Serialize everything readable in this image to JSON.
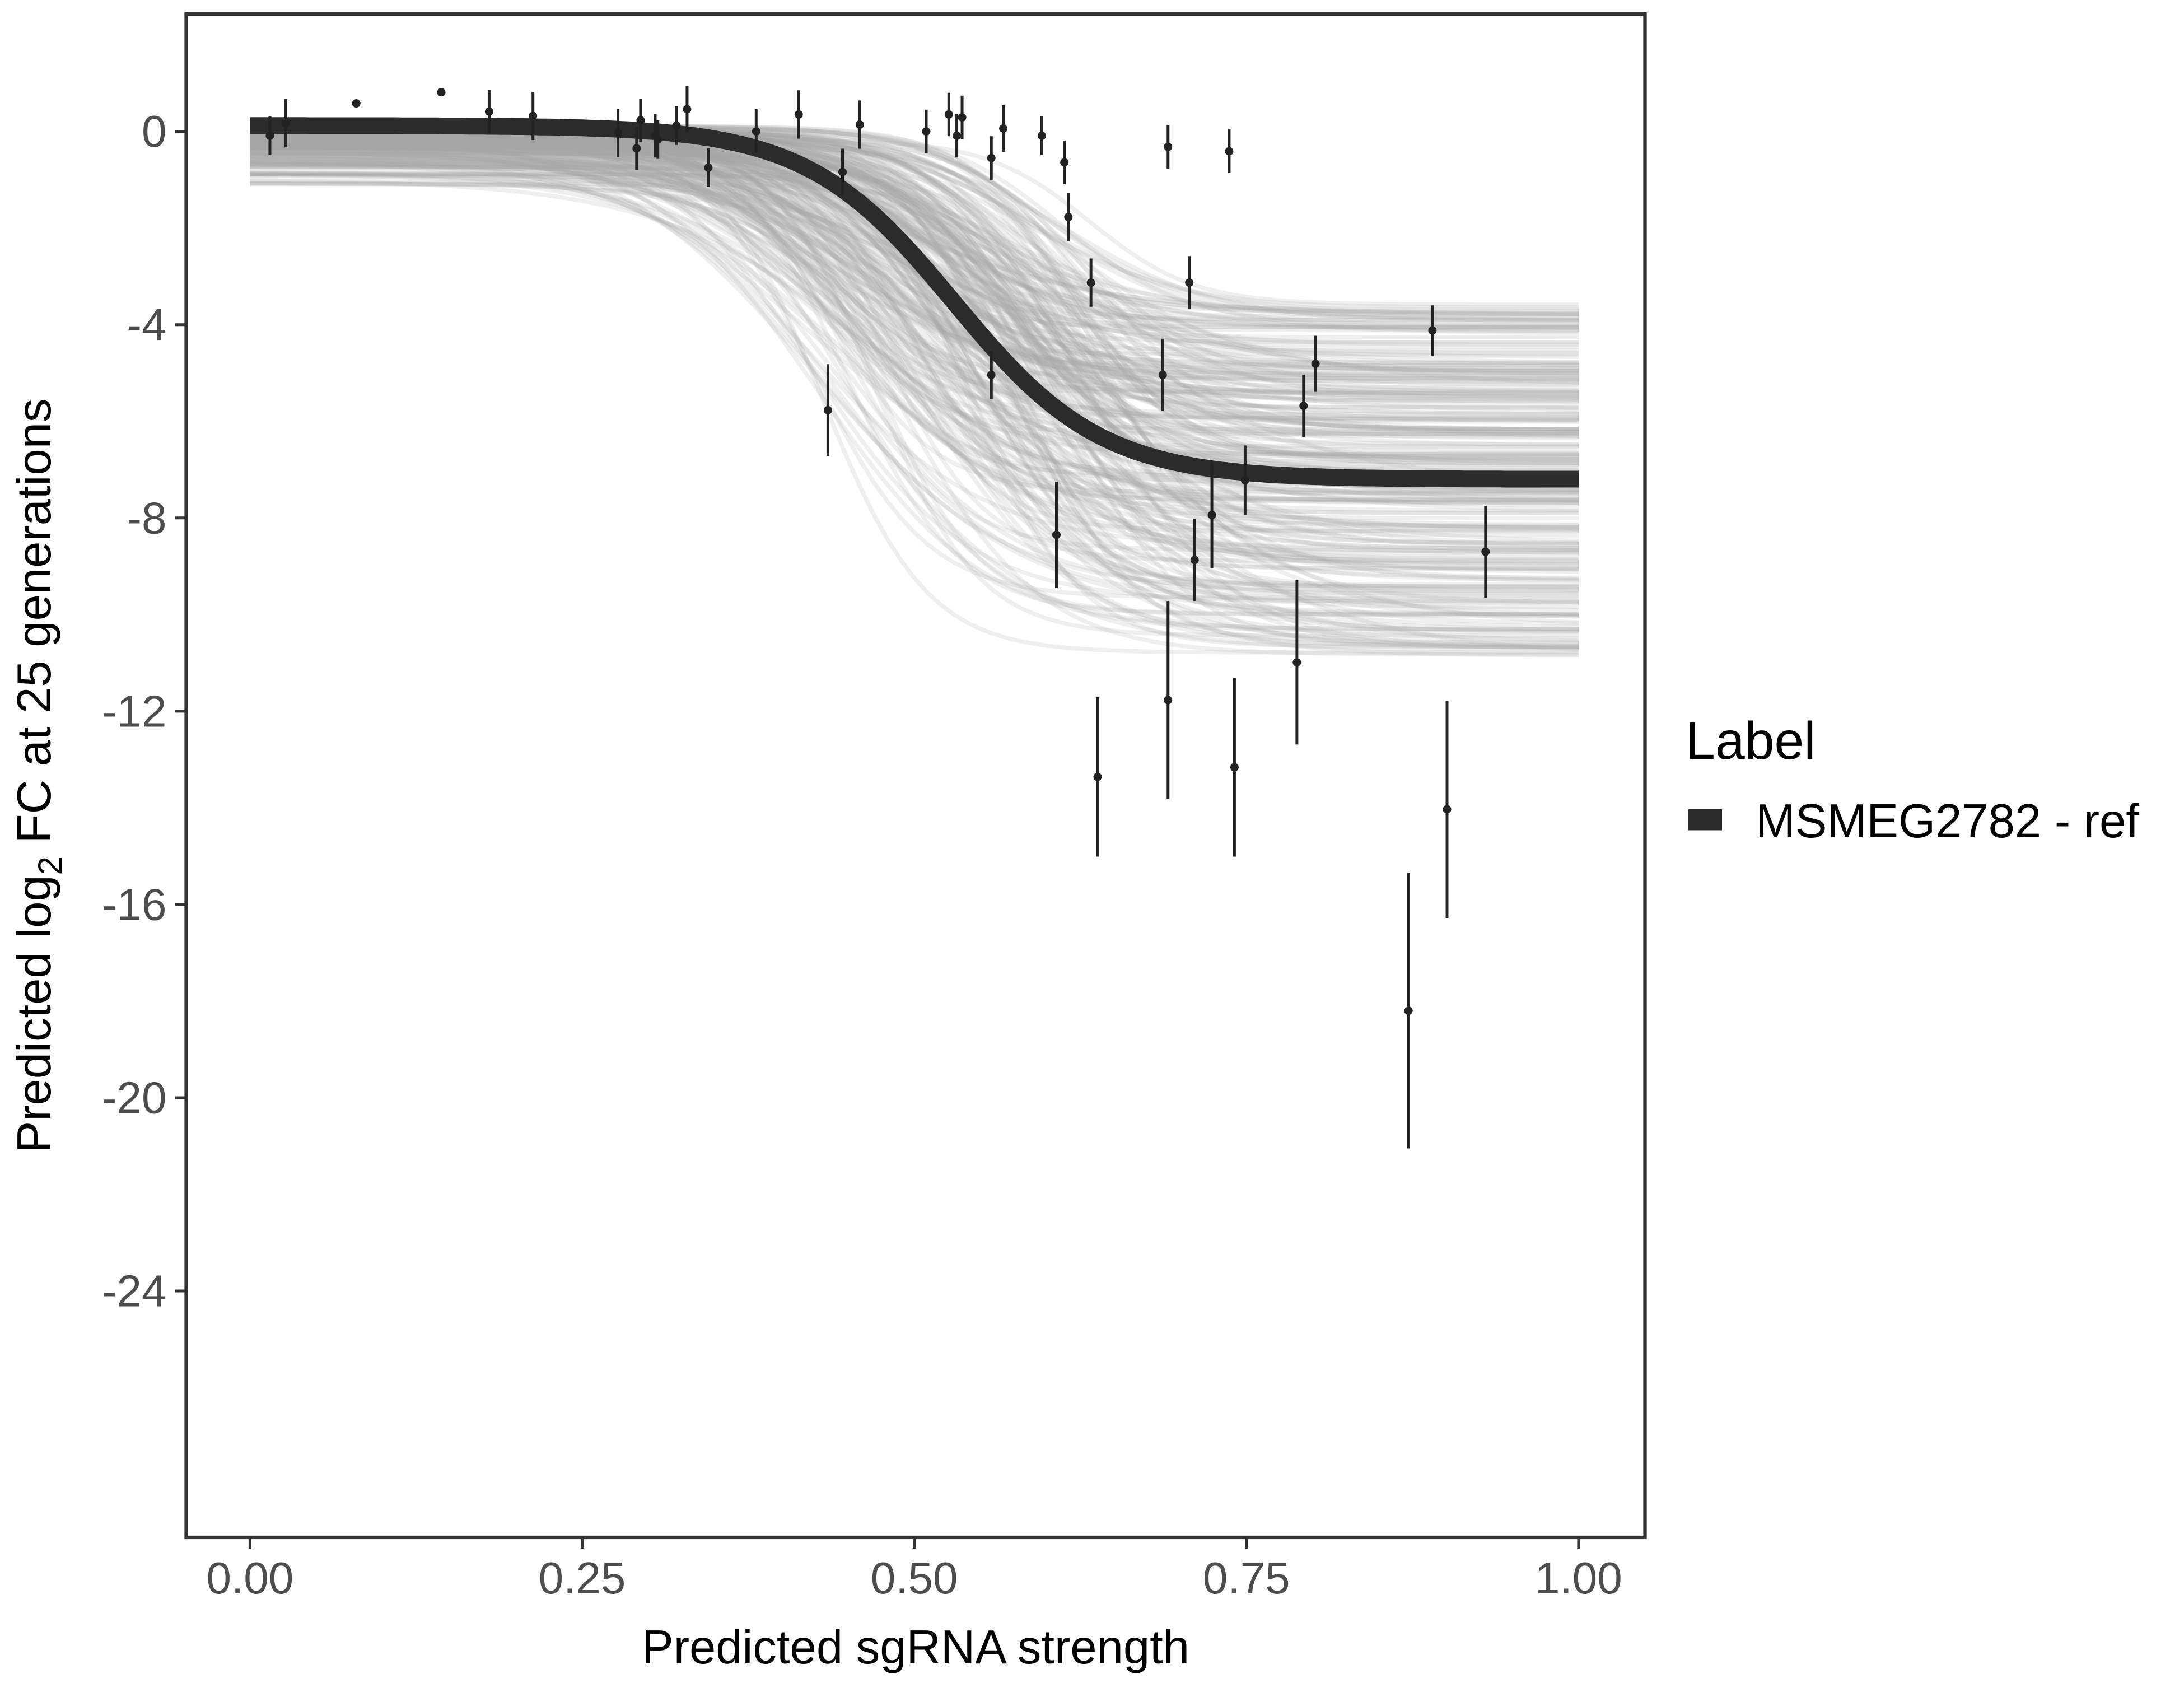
{
  "chart_data": {
    "type": "scatter",
    "title": "",
    "xlabel": "Predicted sgRNA strength",
    "ylabel_prefix": "Predicted  log",
    "ylabel_sub": "2",
    "ylabel_suffix": " FC at 25 generations",
    "xlim": [
      -0.048,
      1.05
    ],
    "ylim": [
      -29.1,
      2.43
    ],
    "x_ticks": [
      0,
      0.25,
      0.5,
      0.75,
      1.0
    ],
    "x_tick_labels": [
      "0.00",
      "0.25",
      "0.50",
      "0.75",
      "1.00"
    ],
    "y_ticks": [
      0,
      -4,
      -8,
      -12,
      -16,
      -20,
      -24
    ],
    "y_tick_labels": [
      "0",
      "-4",
      "-8",
      "-12",
      "-16",
      "-20",
      "-24"
    ],
    "grid": false,
    "legend": {
      "title": "Label",
      "placement": "right",
      "entries": [
        {
          "name": "MSMEG2782 - ref",
          "color": "#2b2b2b"
        }
      ]
    },
    "fit_curve": {
      "top": 0.12,
      "bottom": -7.2,
      "midpoint": 0.53,
      "slope": 18,
      "color": "#2b2b2b"
    },
    "posterior_band_color": "#a6a6a6",
    "points": [
      {
        "x": 0.015,
        "y": -0.09,
        "err": 0.4
      },
      {
        "x": 0.027,
        "y": 0.17,
        "err": 0.5
      },
      {
        "x": 0.08,
        "y": 0.58,
        "err": 0
      },
      {
        "x": 0.144,
        "y": 0.81,
        "err": 0
      },
      {
        "x": 0.18,
        "y": 0.41,
        "err": 0.45
      },
      {
        "x": 0.213,
        "y": 0.32,
        "err": 0.5
      },
      {
        "x": 0.277,
        "y": -0.03,
        "err": 0.5
      },
      {
        "x": 0.291,
        "y": -0.35,
        "err": 0.45
      },
      {
        "x": 0.294,
        "y": 0.23,
        "err": 0.45
      },
      {
        "x": 0.305,
        "y": -0.09,
        "err": 0.45
      },
      {
        "x": 0.307,
        "y": -0.17,
        "err": 0.4
      },
      {
        "x": 0.321,
        "y": 0.12,
        "err": 0.4
      },
      {
        "x": 0.329,
        "y": 0.46,
        "err": 0.48
      },
      {
        "x": 0.345,
        "y": -0.75,
        "err": 0.4
      },
      {
        "x": 0.381,
        "y": 0.0,
        "err": 0.46
      },
      {
        "x": 0.413,
        "y": 0.35,
        "err": 0.5
      },
      {
        "x": 0.435,
        "y": -5.77,
        "err": 0.95
      },
      {
        "x": 0.446,
        "y": -0.84,
        "err": 0.48
      },
      {
        "x": 0.459,
        "y": 0.14,
        "err": 0.5
      },
      {
        "x": 0.509,
        "y": 0.0,
        "err": 0.45
      },
      {
        "x": 0.526,
        "y": 0.35,
        "err": 0.45
      },
      {
        "x": 0.532,
        "y": -0.09,
        "err": 0.45
      },
      {
        "x": 0.536,
        "y": 0.29,
        "err": 0.45
      },
      {
        "x": 0.558,
        "y": -0.55,
        "err": 0.45
      },
      {
        "x": 0.558,
        "y": -5.04,
        "err": 0.5
      },
      {
        "x": 0.567,
        "y": 0.06,
        "err": 0.48
      },
      {
        "x": 0.596,
        "y": -0.09,
        "err": 0.4
      },
      {
        "x": 0.607,
        "y": -8.35,
        "err": 1.1
      },
      {
        "x": 0.613,
        "y": -0.64,
        "err": 0.45
      },
      {
        "x": 0.616,
        "y": -1.77,
        "err": 0.5
      },
      {
        "x": 0.633,
        "y": -3.13,
        "err": 0.5
      },
      {
        "x": 0.638,
        "y": -13.36,
        "err": 1.65
      },
      {
        "x": 0.687,
        "y": -5.04,
        "err": 0.75
      },
      {
        "x": 0.691,
        "y": -0.32,
        "err": 0.45
      },
      {
        "x": 0.691,
        "y": -11.77,
        "err": 2.05
      },
      {
        "x": 0.707,
        "y": -3.13,
        "err": 0.55
      },
      {
        "x": 0.711,
        "y": -8.87,
        "err": 0.85
      },
      {
        "x": 0.724,
        "y": -7.94,
        "err": 1.1
      },
      {
        "x": 0.737,
        "y": -0.41,
        "err": 0.45
      },
      {
        "x": 0.741,
        "y": -13.16,
        "err": 1.85
      },
      {
        "x": 0.749,
        "y": -7.22,
        "err": 0.72
      },
      {
        "x": 0.788,
        "y": -10.99,
        "err": 1.7
      },
      {
        "x": 0.793,
        "y": -5.68,
        "err": 0.64
      },
      {
        "x": 0.802,
        "y": -4.81,
        "err": 0.58
      },
      {
        "x": 0.872,
        "y": -18.2,
        "err": 2.85
      },
      {
        "x": 0.89,
        "y": -4.12,
        "err": 0.52
      },
      {
        "x": 0.901,
        "y": -14.03,
        "err": 2.25
      },
      {
        "x": 0.93,
        "y": -8.7,
        "err": 0.95
      }
    ]
  }
}
